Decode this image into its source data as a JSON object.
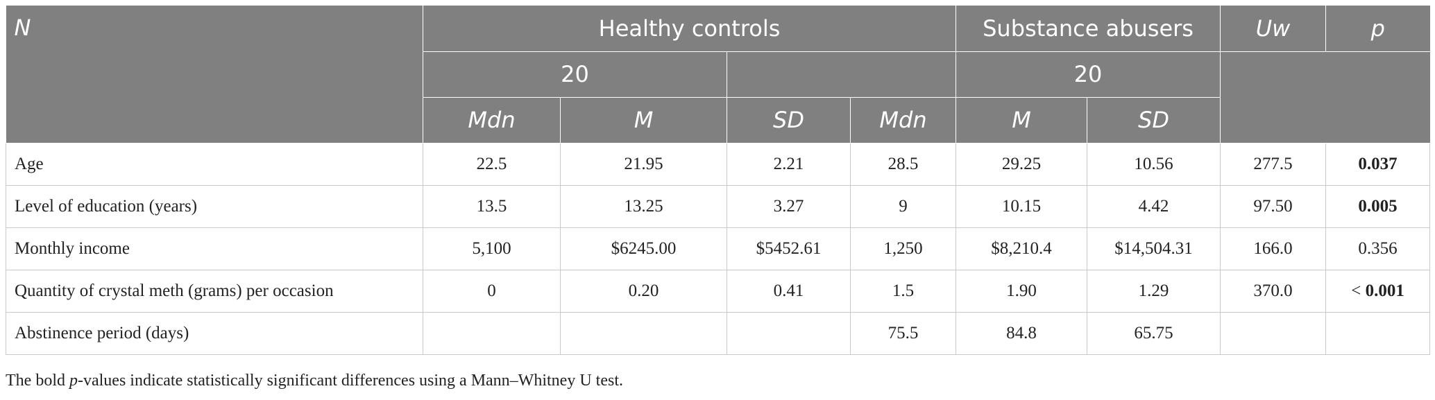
{
  "header": {
    "row1": {
      "n_label": "N",
      "group1": "Healthy controls",
      "group2": "Substance abusers",
      "uw": "Uw",
      "p": "p"
    },
    "row2": {
      "group1_n": "20",
      "group2_n": "20"
    },
    "row3": [
      "Mdn",
      "M",
      "SD",
      "Mdn",
      "M",
      "SD"
    ]
  },
  "rows": [
    {
      "label": "Age",
      "cells": [
        "22.5",
        "21.95",
        "2.21",
        "28.5",
        "29.25",
        "10.56",
        "277.5",
        "0.037"
      ],
      "p_bold": true
    },
    {
      "label": "Level of education (years)",
      "cells": [
        "13.5",
        "13.25",
        "3.27",
        "9",
        "10.15",
        "4.42",
        "97.50",
        "0.005"
      ],
      "p_bold": true
    },
    {
      "label": "Monthly income",
      "cells": [
        "5,100",
        "$6245.00",
        "$5452.61",
        "1,250",
        "$8,210.4",
        "$14,504.31",
        "166.0",
        "0.356"
      ],
      "p_bold": false
    },
    {
      "label": "Quantity of crystal meth (grams) per occasion",
      "cells": [
        "0",
        "0.20",
        "0.41",
        "1.5",
        "1.90",
        "1.29",
        "370.0",
        "0.001"
      ],
      "p_prefix": "< ",
      "p_bold": true
    },
    {
      "label": "Abstinence period (days)",
      "cells": [
        "",
        "",
        "",
        "75.5",
        "84.8",
        "65.75",
        "",
        ""
      ],
      "p_bold": false
    }
  ],
  "footnote": {
    "before": "The bold ",
    "italic": "p",
    "after": "-values indicate statistically significant differences using a Mann–Whitney U test."
  }
}
